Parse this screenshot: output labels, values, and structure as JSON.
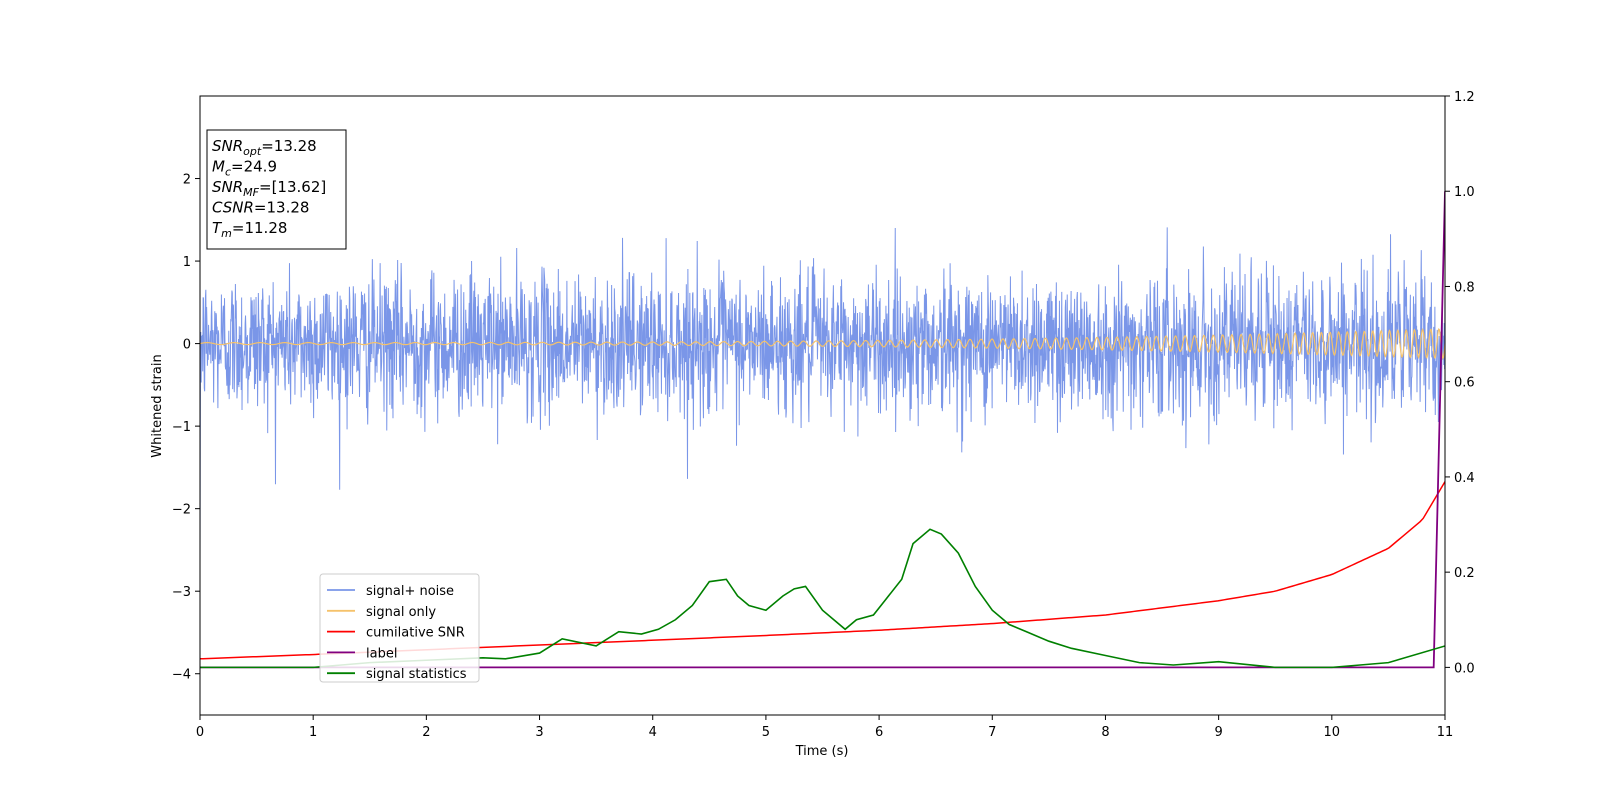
{
  "chart_data": {
    "type": "line",
    "xlabel": "Time (s)",
    "ylabel": "Whitened strain",
    "xlim": [
      0,
      11
    ],
    "ylim_left": [
      -4.5,
      3.0
    ],
    "ylim_right": [
      -0.1,
      1.2
    ],
    "x_ticks": [
      0,
      1,
      2,
      3,
      4,
      5,
      6,
      7,
      8,
      9,
      10,
      11
    ],
    "y_ticks_left": [
      -4,
      -3,
      -2,
      -1,
      0,
      1,
      2
    ],
    "y_ticks_right": [
      0.0,
      0.2,
      0.4,
      0.6,
      0.8,
      1.0,
      1.2
    ],
    "annotation": [
      {
        "main": "SNR",
        "sub": "opt",
        "rest": "=13.28"
      },
      {
        "main": "M",
        "sub": "c",
        "rest": "=24.9"
      },
      {
        "main": "SNR",
        "sub": "MF",
        "rest": "=[13.62]"
      },
      {
        "main": "CSNR",
        "sub": "",
        "rest": "=13.28"
      },
      {
        "main": "T",
        "sub": "m",
        "rest": "=11.28"
      }
    ],
    "legend_position": "lower-left",
    "series": [
      {
        "name": "signal+ noise",
        "color": "#7a96e8",
        "axis": "left",
        "noise_std": 0.42,
        "envelope_approx": 1.5
      },
      {
        "name": "signal only",
        "color": "#f5c26b",
        "axis": "left",
        "amplitude_start": 0.012,
        "amplitude_end": 0.18,
        "freq_start_hz": 4,
        "freq_end_hz": 14
      },
      {
        "name": "cumilative SNR",
        "color": "#ff0000",
        "axis": "right",
        "x": [
          0,
          1,
          2,
          3,
          4,
          5,
          6,
          7,
          8,
          9,
          9.5,
          10,
          10.5,
          10.8,
          11
        ],
        "y": [
          0.018,
          0.027,
          0.037,
          0.047,
          0.057,
          0.067,
          0.078,
          0.092,
          0.11,
          0.14,
          0.16,
          0.195,
          0.25,
          0.31,
          0.39
        ]
      },
      {
        "name": "label",
        "color": "#800080",
        "axis": "right",
        "x": [
          0,
          10.9,
          11
        ],
        "y": [
          0.0,
          0.0,
          1.0
        ]
      },
      {
        "name": "signal statistics",
        "color": "#008000",
        "axis": "right",
        "x": [
          0,
          1,
          1.5,
          2,
          2.5,
          2.7,
          3,
          3.2,
          3.5,
          3.7,
          3.9,
          4.05,
          4.2,
          4.35,
          4.5,
          4.65,
          4.75,
          4.85,
          5.0,
          5.15,
          5.25,
          5.35,
          5.5,
          5.7,
          5.8,
          5.95,
          6.05,
          6.2,
          6.3,
          6.45,
          6.55,
          6.7,
          6.85,
          7.0,
          7.15,
          7.3,
          7.5,
          7.7,
          8.0,
          8.3,
          8.6,
          9.0,
          9.5,
          10.0,
          10.5,
          11
        ],
        "y": [
          0.0,
          0.0,
          0.01,
          0.015,
          0.02,
          0.018,
          0.03,
          0.06,
          0.045,
          0.075,
          0.07,
          0.08,
          0.1,
          0.13,
          0.18,
          0.185,
          0.15,
          0.13,
          0.12,
          0.15,
          0.165,
          0.17,
          0.12,
          0.08,
          0.1,
          0.11,
          0.14,
          0.185,
          0.26,
          0.29,
          0.28,
          0.24,
          0.17,
          0.12,
          0.09,
          0.075,
          0.055,
          0.04,
          0.025,
          0.01,
          0.005,
          0.012,
          0.0,
          0.0,
          0.01,
          0.045
        ]
      }
    ]
  }
}
